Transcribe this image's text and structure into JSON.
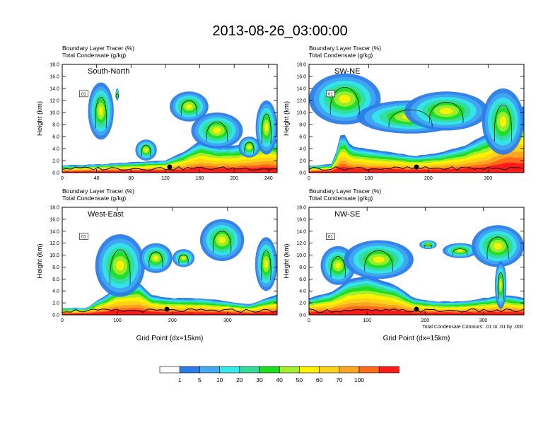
{
  "title": "2013-08-26_03:00:00",
  "colorbar": {
    "colors": [
      "#ffffff",
      "#2b7de9",
      "#41aaf3",
      "#33e9e9",
      "#33dd99",
      "#1fdd1f",
      "#a4ee2d",
      "#fff200",
      "#ffd21a",
      "#ffa51f",
      "#ff6a1a",
      "#ff1a1a"
    ],
    "labels": [
      "1",
      "5",
      "10",
      "20",
      "30",
      "40",
      "50",
      "60",
      "70",
      "100"
    ]
  },
  "contour_note": "Total Condensate Contours: .01 to .01 by .000",
  "chart_data": [
    {
      "type": "heatmap",
      "name": "South-North",
      "field_labels": [
        "Boundary Layer Tracer   (%)",
        "Total Condensate   (g/kg)"
      ],
      "ylabel": "Height (km)",
      "xlabel": "",
      "ylim": [
        0,
        18
      ],
      "xlim": [
        0,
        250
      ],
      "xticks": [
        0,
        40,
        80,
        120,
        160,
        200,
        240
      ],
      "yticks": [
        "0.0",
        "2.0",
        "4.0",
        "6.0",
        "8.0",
        "10.0",
        "12.0",
        "14.0",
        "16.0",
        "18.0"
      ],
      "marker_x": 125,
      "contour_box_label": "01",
      "features": {
        "bl_top": [
          [
            0,
            1.0
          ],
          [
            40,
            1.2
          ],
          [
            80,
            1.5
          ],
          [
            120,
            1.8
          ],
          [
            140,
            3.0
          ],
          [
            160,
            4.8
          ],
          [
            180,
            4.0
          ],
          [
            200,
            4.0
          ],
          [
            220,
            4.8
          ],
          [
            240,
            5.5
          ],
          [
            250,
            5.0
          ]
        ],
        "clouds": [
          {
            "x": [
              30,
              60
            ],
            "y": [
              5.5,
              15.0
            ]
          },
          {
            "x": [
              62,
              66
            ],
            "y": [
              12.0,
              14.0
            ]
          },
          {
            "x": [
              85,
              110
            ],
            "y": [
              2.0,
              5.5
            ]
          },
          {
            "x": [
              125,
              170
            ],
            "y": [
              8.5,
              13.5
            ]
          },
          {
            "x": [
              150,
              210
            ],
            "y": [
              4.0,
              10.0
            ]
          },
          {
            "x": [
              205,
              230
            ],
            "y": [
              2.5,
              6.0
            ]
          },
          {
            "x": [
              225,
              250
            ],
            "y": [
              3.0,
              12.0
            ]
          }
        ]
      }
    },
    {
      "type": "heatmap",
      "name": "SW-NE",
      "field_labels": [
        "Boundary Layer Tracer   (%)",
        "Total Condensate   (g/kg)"
      ],
      "ylabel": "Height (km)",
      "xlabel": "",
      "ylim": [
        0,
        18
      ],
      "xlim": [
        0,
        360
      ],
      "xticks": [
        0,
        100,
        200,
        300
      ],
      "yticks": [
        "0.0",
        "2.0",
        "4.0",
        "6.0",
        "8.0",
        "10.0",
        "12.0",
        "14.0",
        "16.0",
        "18.0"
      ],
      "marker_x": 180,
      "contour_box_label": "01",
      "features": {
        "bl_top": [
          [
            0,
            1.0
          ],
          [
            40,
            1.2
          ],
          [
            55,
            6.5
          ],
          [
            70,
            4.0
          ],
          [
            100,
            3.5
          ],
          [
            140,
            3.0
          ],
          [
            180,
            2.5
          ],
          [
            220,
            3.0
          ],
          [
            260,
            4.0
          ],
          [
            300,
            6.0
          ],
          [
            330,
            10.5
          ],
          [
            360,
            10.0
          ]
        ],
        "clouds": [
          {
            "x": [
              0,
              120
            ],
            "y": [
              8.0,
              16.5
            ]
          },
          {
            "x": [
              80,
              260
            ],
            "y": [
              6.5,
              12.0
            ]
          },
          {
            "x": [
              160,
              300
            ],
            "y": [
              7.0,
              13.5
            ]
          },
          {
            "x": [
              290,
              360
            ],
            "y": [
              3.0,
              14.0
            ]
          }
        ]
      }
    },
    {
      "type": "heatmap",
      "name": "West-East",
      "field_labels": [
        "Boundary Layer Tracer   (%)",
        "Total Condensate   (g/kg)"
      ],
      "ylabel": "Height (km)",
      "xlabel": "Grid Point (dx=15km)",
      "ylim": [
        0,
        18
      ],
      "xlim": [
        0,
        390
      ],
      "xticks": [
        0,
        100,
        200,
        300
      ],
      "yticks": [
        "0.0",
        "2.0",
        "4.0",
        "6.0",
        "8.0",
        "10.0",
        "12.0",
        "14.0",
        "16.0",
        "18.0"
      ],
      "marker_x": 190,
      "contour_box_label": "01",
      "features": {
        "bl_top": [
          [
            0,
            1.0
          ],
          [
            45,
            1.0
          ],
          [
            60,
            2.0
          ],
          [
            80,
            3.0
          ],
          [
            100,
            4.5
          ],
          [
            140,
            5.0
          ],
          [
            160,
            3.0
          ],
          [
            200,
            2.5
          ],
          [
            250,
            2.5
          ],
          [
            300,
            2.0
          ],
          [
            340,
            1.5
          ],
          [
            370,
            2.5
          ],
          [
            390,
            3.0
          ]
        ],
        "clouds": [
          {
            "x": [
              60,
              150
            ],
            "y": [
              3.0,
              13.5
            ]
          },
          {
            "x": [
              140,
              200
            ],
            "y": [
              7.0,
              12.0
            ]
          },
          {
            "x": [
              200,
              240
            ],
            "y": [
              8.0,
              11.0
            ]
          },
          {
            "x": [
              250,
              330
            ],
            "y": [
              9.0,
              16.0
            ]
          },
          {
            "x": [
              350,
              390
            ],
            "y": [
              4.0,
              13.0
            ]
          }
        ]
      }
    },
    {
      "type": "heatmap",
      "name": "NW-SE",
      "field_labels": [
        "Boundary Layer Tracer   (%)",
        "Total Condensate   (g/kg)"
      ],
      "ylabel": "Height (km)",
      "xlabel": "Grid Point (dx=15km)",
      "ylim": [
        0,
        18
      ],
      "xlim": [
        0,
        370
      ],
      "xticks": [
        0,
        100,
        200,
        300
      ],
      "yticks": [
        "0.0",
        "2.0",
        "4.0",
        "6.0",
        "8.0",
        "10.0",
        "12.0",
        "14.0",
        "16.0",
        "18.0"
      ],
      "marker_x": 185,
      "contour_box_label": "01",
      "features": {
        "bl_top": [
          [
            0,
            2.5
          ],
          [
            40,
            3.5
          ],
          [
            70,
            5.5
          ],
          [
            100,
            6.0
          ],
          [
            150,
            4.5
          ],
          [
            180,
            2.5
          ],
          [
            220,
            2.0
          ],
          [
            260,
            2.0
          ],
          [
            300,
            2.5
          ],
          [
            340,
            3.0
          ],
          [
            370,
            2.5
          ]
        ],
        "clouds": [
          {
            "x": [
              20,
              80
            ],
            "y": [
              5.0,
              11.5
            ]
          },
          {
            "x": [
              60,
              180
            ],
            "y": [
              6.0,
              12.5
            ]
          },
          {
            "x": [
              190,
              220
            ],
            "y": [
              11.0,
              12.5
            ]
          },
          {
            "x": [
              230,
              290
            ],
            "y": [
              9.5,
              12.0
            ]
          },
          {
            "x": [
              280,
              370
            ],
            "y": [
              8.0,
              15.0
            ]
          },
          {
            "x": [
              320,
              340
            ],
            "y": [
              1.0,
              9.0
            ]
          }
        ]
      }
    }
  ]
}
